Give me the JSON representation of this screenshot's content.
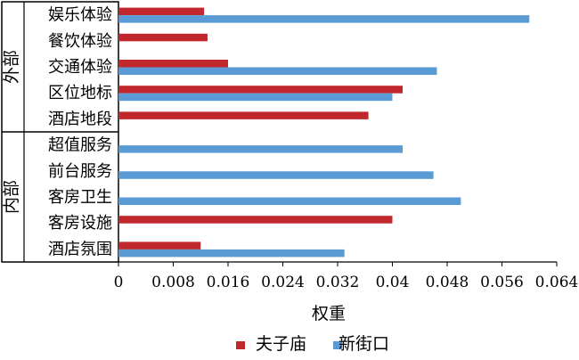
{
  "chart_data": {
    "type": "bar",
    "orientation": "horizontal",
    "groups": [
      {
        "label": "外部",
        "categories": [
          "娱乐体验",
          "餐饮体验",
          "交通体验",
          "区位地标",
          "酒店地段"
        ]
      },
      {
        "label": "内部",
        "categories": [
          "超值服务",
          "前台服务",
          "客房卫生",
          "客房设施",
          "酒店氛围"
        ]
      }
    ],
    "categories": [
      "娱乐体验",
      "餐饮体验",
      "交通体验",
      "区位地标",
      "酒店地段",
      "超值服务",
      "前台服务",
      "客房卫生",
      "客房设施",
      "酒店氛围"
    ],
    "series": [
      {
        "name": "夫子庙",
        "color": "#c0282d",
        "values": [
          0.0125,
          0.013,
          0.016,
          0.0415,
          0.0365,
          0,
          0,
          0,
          0.04,
          0.012
        ]
      },
      {
        "name": "新街口",
        "color": "#5b9bd5",
        "values": [
          0.06,
          0,
          0.0465,
          0.04,
          0,
          0.0415,
          0.046,
          0.05,
          0,
          0.033
        ]
      }
    ],
    "xlabel": "权重",
    "ylabel": "",
    "xlim": [
      0,
      0.064
    ],
    "xticks": [
      "0",
      "0.008",
      "0.016",
      "0.024",
      "0.032",
      "0.04",
      "0.048",
      "0.056",
      "0.064"
    ],
    "grid": false,
    "legend_position": "bottom"
  }
}
